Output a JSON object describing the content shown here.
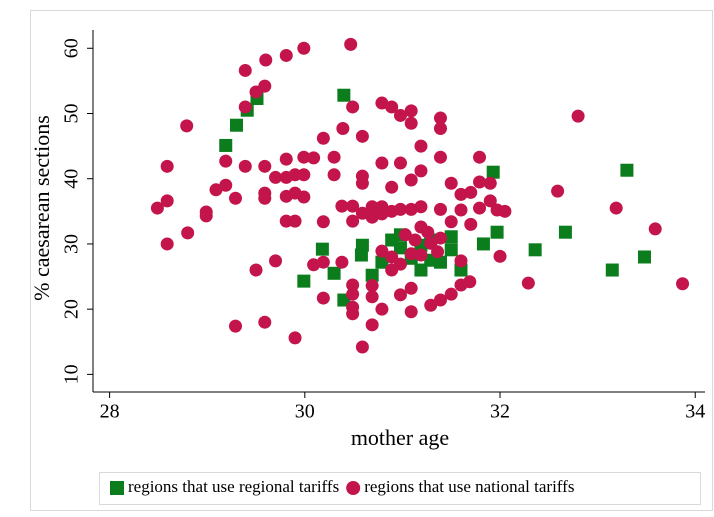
{
  "chart_data": {
    "type": "scatter",
    "x_label": "mother age",
    "y_label": "% caesarean sections",
    "xlim": [
      27.83,
      34.1
    ],
    "ylim": [
      7.3,
      62.8
    ],
    "xticks": [
      28,
      30,
      32,
      34
    ],
    "yticks": [
      10,
      20,
      30,
      40,
      50,
      60
    ],
    "legend": "bottom",
    "series": [
      {
        "name": "regions that use regional tariffs",
        "color": "#0b7d1d",
        "marker": "square",
        "x": [
          29.19,
          29.51,
          29.41,
          29.3,
          30.4,
          29.99,
          30.18,
          30.3,
          30.4,
          30.59,
          30.58,
          30.69,
          30.79,
          30.89,
          30.98,
          30.98,
          31.09,
          31.19,
          31.19,
          31.29,
          31.29,
          31.39,
          31.5,
          31.6,
          31.5,
          31.83,
          31.93,
          31.97,
          32.36,
          32.67,
          33.15,
          33.3,
          33.48
        ],
        "values": [
          45.1,
          52.3,
          50.5,
          48.2,
          52.8,
          24.3,
          29.2,
          25.5,
          21.4,
          29.8,
          28.3,
          25.2,
          27.2,
          30.6,
          31.4,
          29.4,
          27.8,
          26.0,
          29.8,
          30.6,
          27.5,
          27.2,
          29.1,
          26.0,
          31.1,
          30.0,
          41.0,
          31.8,
          29.1,
          31.8,
          26.0,
          41.3,
          28.0
        ]
      },
      {
        "name": "regions that use national tariffs",
        "color": "#c3144b",
        "marker": "circle",
        "x": [
          28.49,
          28.59,
          28.59,
          28.59,
          28.79,
          28.8,
          28.99,
          28.99,
          29.09,
          29.19,
          29.19,
          29.29,
          29.29,
          29.39,
          29.39,
          29.39,
          29.5,
          29.5,
          29.6,
          29.59,
          29.59,
          29.59,
          29.59,
          29.59,
          29.7,
          29.7,
          29.81,
          29.81,
          29.81,
          29.81,
          29.81,
          29.9,
          29.9,
          29.9,
          29.9,
          29.99,
          29.99,
          29.99,
          29.99,
          30.09,
          30.09,
          30.19,
          30.19,
          30.19,
          30.19,
          30.3,
          30.3,
          30.39,
          30.38,
          30.38,
          30.47,
          30.49,
          30.49,
          30.49,
          30.49,
          30.49,
          30.49,
          30.49,
          30.59,
          30.59,
          30.59,
          30.59,
          30.59,
          30.69,
          30.69,
          30.69,
          30.69,
          30.69,
          30.79,
          30.79,
          30.79,
          30.79,
          30.79,
          30.79,
          30.89,
          30.89,
          30.89,
          30.89,
          30.89,
          30.98,
          30.98,
          30.98,
          30.98,
          30.98,
          31.09,
          31.09,
          31.09,
          31.09,
          31.09,
          31.09,
          31.09,
          31.19,
          31.19,
          31.19,
          31.19,
          31.19,
          31.29,
          31.29,
          31.39,
          31.39,
          31.39,
          31.39,
          31.39,
          31.39,
          31.5,
          31.5,
          31.5,
          31.6,
          31.6,
          31.6,
          31.6,
          31.69,
          31.7,
          31.7,
          31.79,
          31.79,
          31.79,
          31.9,
          31.9,
          31.97,
          32.0,
          32.05,
          32.29,
          32.59,
          32.8,
          33.19,
          33.59,
          33.87,
          31.26,
          31.36,
          31.13,
          31.03
        ],
        "values": [
          35.5,
          41.9,
          36.6,
          30.0,
          48.1,
          31.7,
          34.9,
          34.3,
          38.3,
          42.7,
          39.0,
          37.0,
          17.4,
          56.6,
          51.0,
          41.9,
          53.3,
          26.0,
          58.2,
          54.2,
          41.9,
          37.8,
          37.0,
          18.0,
          40.2,
          27.4,
          58.9,
          43.0,
          40.2,
          37.3,
          33.5,
          40.6,
          37.8,
          33.5,
          15.6,
          60.0,
          43.3,
          40.6,
          37.2,
          43.2,
          26.8,
          46.2,
          33.4,
          27.2,
          21.7,
          43.3,
          40.6,
          47.7,
          35.8,
          27.2,
          60.6,
          51.0,
          35.8,
          33.5,
          23.7,
          22.3,
          20.3,
          19.3,
          46.5,
          40.4,
          39.3,
          34.7,
          14.2,
          35.7,
          34.1,
          23.6,
          21.9,
          17.6,
          51.6,
          42.4,
          35.7,
          34.6,
          28.9,
          20.0,
          51.0,
          38.7,
          35.0,
          28.0,
          26.0,
          49.7,
          42.4,
          35.3,
          26.9,
          22.2,
          50.4,
          48.5,
          39.8,
          35.3,
          28.5,
          23.2,
          19.6,
          45.0,
          41.2,
          35.7,
          32.6,
          28.3,
          30.1,
          20.6,
          49.3,
          47.7,
          43.3,
          35.3,
          30.9,
          21.4,
          39.3,
          33.4,
          22.3,
          37.6,
          35.2,
          23.7,
          27.4,
          24.2,
          37.9,
          33.0,
          35.5,
          43.3,
          39.5,
          39.3,
          36.6,
          35.2,
          28.1,
          35.0,
          24.0,
          38.1,
          49.6,
          35.5,
          32.3,
          23.9,
          31.8,
          28.8,
          30.6,
          31.4
        ]
      }
    ]
  }
}
